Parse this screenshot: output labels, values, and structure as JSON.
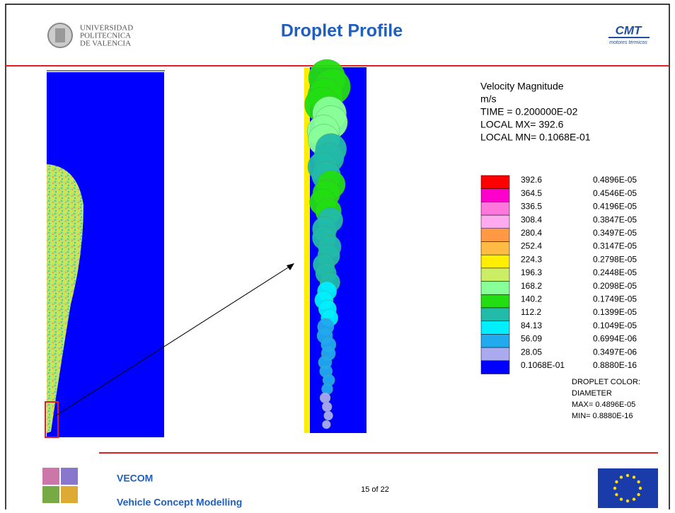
{
  "header": {
    "university": [
      "UNIVERSIDAD",
      "POLITECNICA",
      "DE VALENCIA"
    ],
    "title": "Droplet Profile",
    "logo": {
      "mark": "CMT",
      "caption": "motores térmicos"
    }
  },
  "legend": {
    "info": [
      "Velocity Magnitude",
      "m/s",
      "TIME = 0.200000E-02",
      "LOCAL MX=  392.6",
      "LOCAL MN= 0.1068E-01"
    ],
    "velocity": [
      "392.6",
      "364.5",
      "336.5",
      "308.4",
      "280.4",
      "252.4",
      "224.3",
      "196.3",
      "168.2",
      "140.2",
      "112.2",
      "84.13",
      "56.09",
      "28.05",
      "0.1068E-01"
    ],
    "diameter": [
      "0.4896E-05",
      "0.4546E-05",
      "0.4196E-05",
      "0.3847E-05",
      "0.3497E-05",
      "0.3147E-05",
      "0.2798E-05",
      "0.2448E-05",
      "0.2098E-05",
      "0.1749E-05",
      "0.1399E-05",
      "0.1049E-05",
      "0.6994E-06",
      "0.3497E-06",
      "0.8880E-16"
    ],
    "colors": [
      "#ff0000",
      "#ff00cc",
      "#ff77dd",
      "#ffaaee",
      "#ff9944",
      "#ffbb44",
      "#ffee00",
      "#ccee66",
      "#88ff99",
      "#22dd11",
      "#22bbaa",
      "#00eeff",
      "#22aaee",
      "#aaaaee",
      "#0000ff"
    ],
    "droplet_color": [
      "DROPLET COLOR:",
      "DIAMETER",
      "MAX= 0.4896E-05",
      "MIN= 0.8880E-16"
    ]
  },
  "footer": {
    "project": "VECOM",
    "project_name": "Vehicle Concept Modelling",
    "page": "15 of  22"
  }
}
